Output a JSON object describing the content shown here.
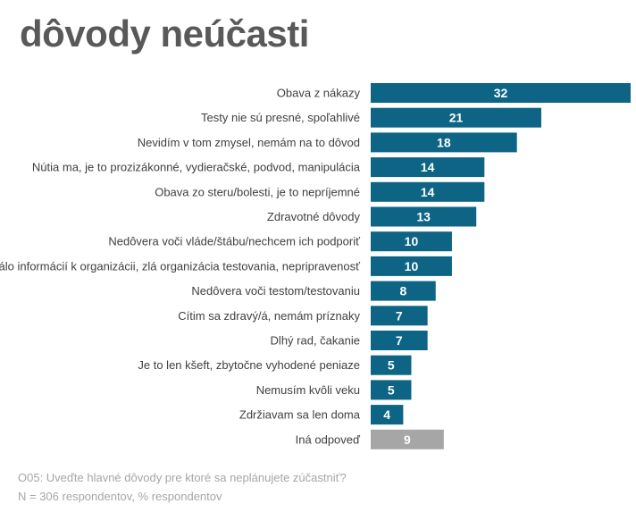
{
  "title": "dôvody neúčasti",
  "chart_data": {
    "type": "bar",
    "orientation": "horizontal",
    "title": "dôvody neúčasti",
    "xlabel": "",
    "ylabel": "",
    "xlim": [
      0,
      32
    ],
    "grid": false,
    "categories": [
      "Obava z nákazy",
      "Testy nie sú presné, spoľahlivé",
      "Nevidím v tom zmysel, nemám na to dôvod",
      "Nútia ma, je to prozizákonné, vydieračské, podvod, manipulácia",
      "Obava zo steru/bolesti, je to nepríjemné",
      "Zdravotné dôvody",
      "Nedôvera voči vláde/štábu/nechcem ich podporiť",
      "Málo informácií k organizácii, zlá organizácia testovania, nepripravenosť",
      "Nedôvera voči testom/testovaniu",
      "Cítim sa zdravý/á, nemám príznaky",
      "Dlhý rad, čakanie",
      "Je to len kšeft, zbytočne vyhodené peniaze",
      "Nemusím kvôli veku",
      "Zdržiavam sa len doma",
      "Iná odpoveď"
    ],
    "values": [
      32,
      21,
      18,
      14,
      14,
      13,
      10,
      10,
      8,
      7,
      7,
      5,
      5,
      4,
      9
    ],
    "colors": [
      "#0d6485",
      "#0d6485",
      "#0d6485",
      "#0d6485",
      "#0d6485",
      "#0d6485",
      "#0d6485",
      "#0d6485",
      "#0d6485",
      "#0d6485",
      "#0d6485",
      "#0d6485",
      "#0d6485",
      "#0d6485",
      "#a6a6a6"
    ]
  },
  "footer": {
    "question": "O05: Uveďte hlavné dôvody pre ktoré sa neplánujete zúčastniť?",
    "sample": "N = 306 respondentov, % respondentov"
  }
}
